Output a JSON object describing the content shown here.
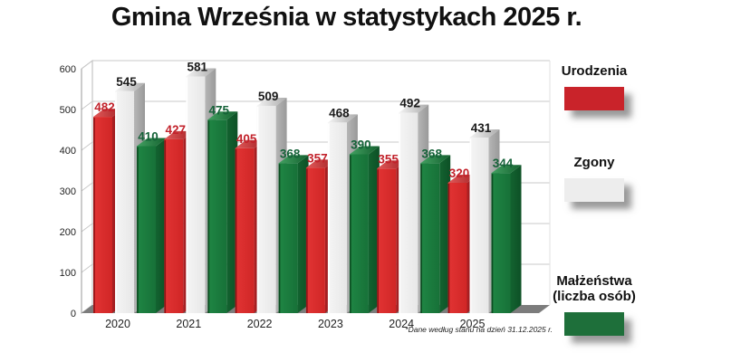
{
  "title": "Gmina Września w statystykach 2025 r.",
  "footnote": "*Dane według stanu na dzień 31.12.2025 r.",
  "legend": {
    "items": [
      {
        "label": "Urodzenia",
        "color": "#c9232a"
      },
      {
        "label": "Zgony",
        "color": "#ededed"
      },
      {
        "line1": "Małżeństwa",
        "line2": "(liczba osób)",
        "color": "#1e6f3a"
      }
    ]
  },
  "chart_data": {
    "type": "bar",
    "style": "3d-column",
    "title": "Gmina Września w statystykach 2025 r.",
    "categories": [
      "2020",
      "2021",
      "2022",
      "2023",
      "2024",
      "2025"
    ],
    "series": [
      {
        "name": "Urodzenia",
        "values": [
          482,
          427,
          405,
          357,
          355,
          320
        ],
        "palette": {
          "front": "#e23434",
          "frontDark": "#d02626",
          "side": "#aa2023",
          "sideDark": "#8d1618",
          "top": "#e25a5a",
          "topDark": "#a32124",
          "edge": "#8f1215",
          "label": "#c2222b"
        }
      },
      {
        "name": "Zgony",
        "values": [
          545,
          581,
          509,
          468,
          492,
          431
        ],
        "palette": {
          "front": "#f5f5f5",
          "frontDark": "#e7e7e7",
          "side": "#b6b6b6",
          "sideDark": "#999999",
          "top": "#f4f4f4",
          "topDark": "#ababab",
          "edge": "#ffffff",
          "label": "#1a1a1a"
        }
      },
      {
        "name": "Małżeństwa (liczba osób)",
        "values": [
          410,
          475,
          368,
          390,
          368,
          344
        ],
        "palette": {
          "front": "#1f8644",
          "frontDark": "#177138",
          "side": "#136330",
          "sideDark": "#0d5026",
          "top": "#43a162",
          "topDark": "#13602e",
          "edge": "#0c4c21",
          "label": "#156238"
        }
      }
    ],
    "ylim": [
      0,
      600
    ],
    "yticks": [
      0,
      100,
      200,
      300,
      400,
      500,
      600
    ],
    "grid": true,
    "legend_position": "right",
    "colors": {
      "floor": "#7c7c7c",
      "gridline": "#c9c9c9",
      "wall_edge": "#b9b9b9"
    }
  }
}
